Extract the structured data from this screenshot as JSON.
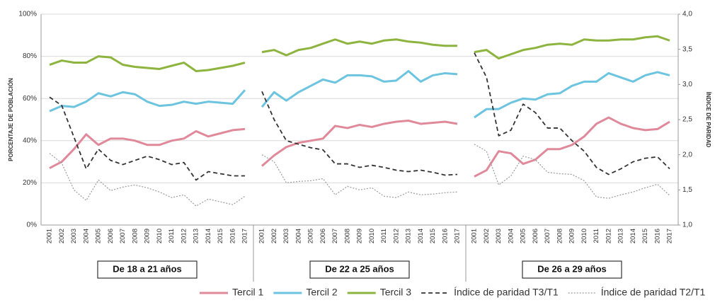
{
  "chart_data": [
    {
      "type": "line",
      "title": "De 18 a 21 años",
      "ylabel": "PORCENTAJE DE POBLACIÓN",
      "categories": [
        "2001",
        "2002",
        "2003",
        "2004",
        "2005",
        "2006",
        "2007",
        "2008",
        "2009",
        "2010",
        "2011",
        "2012",
        "2013",
        "2014",
        "2015",
        "2016",
        "2017"
      ],
      "ylim": [
        0,
        100
      ],
      "y2lim": [
        1,
        4
      ],
      "yticks": [
        {
          "value": 0,
          "label": "0%"
        },
        {
          "value": 20,
          "label": "20%"
        },
        {
          "value": 40,
          "label": "40%"
        },
        {
          "value": 60,
          "label": "60%"
        },
        {
          "value": 80,
          "label": "80%"
        },
        {
          "value": 100,
          "label": "100%"
        }
      ],
      "grid": true,
      "legend": "bottom",
      "series": [
        {
          "name": "Tercil 1",
          "color": "#e0899a",
          "style": "solid",
          "values": [
            27,
            30,
            36,
            43,
            38,
            41,
            41,
            40,
            38,
            38,
            40,
            41,
            44.5,
            42,
            43.5,
            45,
            45.5
          ]
        },
        {
          "name": "Tercil 2",
          "color": "#6cc4df",
          "style": "solid",
          "values": [
            54,
            56.5,
            56,
            58.5,
            62.5,
            61,
            63,
            62,
            58.5,
            56.5,
            57,
            58.5,
            57.5,
            58.5,
            58,
            57.5,
            64
          ]
        },
        {
          "name": "Tercil 3",
          "color": "#8db43f",
          "style": "solid",
          "values": [
            76,
            78,
            77,
            77,
            80,
            79.5,
            76,
            75,
            74.5,
            74,
            75.5,
            77,
            73,
            73.5,
            74.5,
            75.5,
            77
          ]
        },
        {
          "name": "Índice de paridad T3/T1",
          "color": "#333333",
          "style": "dashed",
          "axis": "y2",
          "values": [
            2.82,
            2.7,
            2.25,
            1.8,
            2.08,
            1.92,
            1.86,
            1.92,
            1.98,
            1.93,
            1.86,
            1.89,
            1.64,
            1.76,
            1.73,
            1.7,
            1.7
          ]
        },
        {
          "name": "Índice de paridad T2/T1",
          "color": "#9a9a9a",
          "style": "dotted",
          "axis": "y2",
          "values": [
            2.02,
            1.88,
            1.5,
            1.35,
            1.64,
            1.49,
            1.54,
            1.57,
            1.53,
            1.47,
            1.39,
            1.43,
            1.27,
            1.37,
            1.33,
            1.29,
            1.41
          ]
        }
      ]
    },
    {
      "type": "line",
      "title": "De 22 a 25 años",
      "categories": [
        "2001",
        "2002",
        "2003",
        "2004",
        "2005",
        "2006",
        "2007",
        "2008",
        "2009",
        "2010",
        "2011",
        "2012",
        "2013",
        "2014",
        "2015",
        "2016",
        "2017"
      ],
      "ylim": [
        0,
        100
      ],
      "y2lim": [
        1,
        4
      ],
      "series": [
        {
          "color": "#e0899a",
          "style": "solid",
          "values": [
            28,
            33,
            37,
            39,
            40,
            41,
            47,
            46,
            47.5,
            46.5,
            48,
            49,
            49.5,
            48,
            48.5,
            49,
            48
          ]
        },
        {
          "color": "#6cc4df",
          "style": "solid",
          "values": [
            56,
            63,
            59,
            63,
            66,
            69,
            67.5,
            71,
            71,
            70.5,
            68,
            68.5,
            73,
            68,
            71,
            72,
            71.5
          ]
        },
        {
          "color": "#8db43f",
          "style": "solid",
          "values": [
            82,
            83,
            80.5,
            83,
            84,
            86,
            88,
            86,
            87,
            86,
            87.5,
            88,
            87,
            86.5,
            85.5,
            85,
            85
          ]
        },
        {
          "color": "#333333",
          "style": "dashed",
          "axis": "y2",
          "values": [
            2.9,
            2.5,
            2.2,
            2.15,
            2.1,
            2.07,
            1.87,
            1.87,
            1.82,
            1.85,
            1.82,
            1.78,
            1.76,
            1.78,
            1.75,
            1.71,
            1.72
          ]
        },
        {
          "color": "#9a9a9a",
          "style": "dotted",
          "axis": "y2",
          "values": [
            2.0,
            1.9,
            1.6,
            1.62,
            1.63,
            1.66,
            1.43,
            1.55,
            1.5,
            1.53,
            1.41,
            1.39,
            1.47,
            1.43,
            1.44,
            1.46,
            1.47
          ]
        }
      ]
    },
    {
      "type": "line",
      "title": "De 26 a 29 años",
      "y2label": "ÍNDICE DE PARIDAD",
      "categories": [
        "2001",
        "2002",
        "2003",
        "2004",
        "2005",
        "2006",
        "2007",
        "2008",
        "2009",
        "2010",
        "2011",
        "2012",
        "2013",
        "2014",
        "2015",
        "2016",
        "2017"
      ],
      "ylim": [
        0,
        100
      ],
      "y2lim": [
        1,
        4
      ],
      "y2ticks": [
        {
          "value": 1,
          "label": "1,0"
        },
        {
          "value": 1.5,
          "label": "1,5"
        },
        {
          "value": 2,
          "label": "2,0"
        },
        {
          "value": 2.5,
          "label": "2,5"
        },
        {
          "value": 3,
          "label": "3,0"
        },
        {
          "value": 3.5,
          "label": "3,5"
        },
        {
          "value": 4,
          "label": "4,0"
        }
      ],
      "series": [
        {
          "color": "#e0899a",
          "style": "solid",
          "values": [
            23,
            26,
            35,
            34,
            29,
            31,
            36,
            36,
            38,
            42,
            48,
            51,
            48,
            46,
            45,
            45.5,
            49
          ]
        },
        {
          "color": "#6cc4df",
          "style": "solid",
          "values": [
            51,
            55,
            55,
            58,
            60,
            59.5,
            62,
            62.5,
            66,
            68,
            68,
            72,
            70,
            68,
            71,
            72.5,
            71
          ]
        },
        {
          "color": "#8db43f",
          "style": "solid",
          "values": [
            82,
            83,
            79,
            81,
            83,
            84,
            85.5,
            86,
            85.5,
            88,
            87.5,
            87.5,
            88,
            88,
            89,
            89.5,
            87.5
          ]
        },
        {
          "color": "#333333",
          "style": "dashed",
          "axis": "y2",
          "values": [
            3.45,
            3.1,
            2.27,
            2.35,
            2.72,
            2.6,
            2.38,
            2.38,
            2.2,
            2.05,
            1.82,
            1.72,
            1.8,
            1.9,
            1.95,
            1.97,
            1.8
          ]
        },
        {
          "color": "#9a9a9a",
          "style": "dotted",
          "axis": "y2",
          "values": [
            2.15,
            2.05,
            1.57,
            1.7,
            1.98,
            1.93,
            1.75,
            1.73,
            1.72,
            1.63,
            1.4,
            1.38,
            1.43,
            1.47,
            1.53,
            1.58,
            1.42
          ]
        }
      ]
    }
  ]
}
